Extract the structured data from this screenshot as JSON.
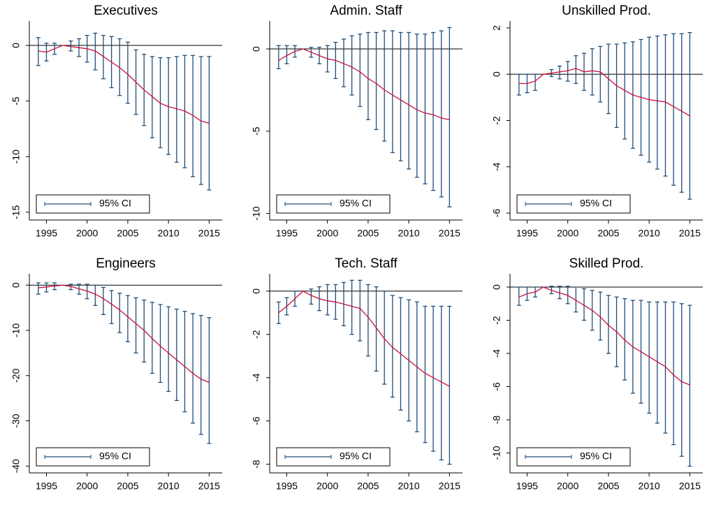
{
  "chart_data": [
    {
      "type": "errorbar",
      "title": "Executives",
      "color": "#c8103e",
      "ci_color": "#1f4e79",
      "legend": {
        "label": "95% CI",
        "position": "lower left"
      },
      "yline": 0,
      "x": [
        1994,
        1995,
        1996,
        1997,
        1998,
        1999,
        2000,
        2001,
        2002,
        2003,
        2004,
        2005,
        2006,
        2007,
        2008,
        2009,
        2010,
        2011,
        2012,
        2013,
        2014,
        2015
      ],
      "values": [
        -0.5,
        -0.6,
        -0.3,
        0,
        -0.1,
        -0.2,
        -0.3,
        -0.5,
        -1.0,
        -1.5,
        -2.0,
        -2.6,
        -3.3,
        -4.0,
        -4.6,
        -5.2,
        -5.5,
        -5.7,
        -5.9,
        -6.3,
        -6.8,
        -7.0
      ],
      "lower": [
        -1.8,
        -1.4,
        -0.8,
        null,
        -0.5,
        -1.0,
        -1.5,
        -2.2,
        -3.0,
        -3.8,
        -4.5,
        -5.2,
        -6.2,
        -7.2,
        -8.3,
        -9.2,
        -9.8,
        -10.5,
        -11.0,
        -11.8,
        -12.5,
        -13.0
      ],
      "upper": [
        0.7,
        0.2,
        0.2,
        null,
        0.4,
        0.6,
        0.9,
        1.1,
        0.9,
        0.8,
        0.6,
        0.3,
        -0.4,
        -0.8,
        -1.0,
        -1.1,
        -1.1,
        -1.0,
        -0.9,
        -0.9,
        -1.0,
        -1.0
      ],
      "xlim": [
        1992.9,
        2016.6
      ],
      "xticks": [
        1995,
        2000,
        2005,
        2010,
        2015
      ],
      "ylim": [
        -15.7,
        2.2
      ],
      "yticks": [
        0,
        -5,
        -10,
        -15
      ]
    },
    {
      "type": "errorbar",
      "title": "Admin. Staff",
      "color": "#c8103e",
      "ci_color": "#1f4e79",
      "legend": {
        "label": "95% CI",
        "position": "lower left"
      },
      "yline": 0,
      "x": [
        1994,
        1995,
        1996,
        1997,
        1998,
        1999,
        2000,
        2001,
        2002,
        2003,
        2004,
        2005,
        2006,
        2007,
        2008,
        2009,
        2010,
        2011,
        2012,
        2013,
        2014,
        2015
      ],
      "values": [
        -0.7,
        -0.4,
        -0.15,
        0,
        -0.2,
        -0.4,
        -0.6,
        -0.7,
        -0.9,
        -1.1,
        -1.4,
        -1.8,
        -2.1,
        -2.5,
        -2.8,
        -3.1,
        -3.4,
        -3.7,
        -3.9,
        -4.0,
        -4.2,
        -4.3
      ],
      "lower": [
        -1.2,
        -0.9,
        -0.5,
        null,
        -0.5,
        -0.9,
        -1.4,
        -1.8,
        -2.3,
        -2.8,
        -3.5,
        -4.3,
        -4.9,
        -5.6,
        -6.3,
        -6.8,
        -7.3,
        -7.8,
        -8.2,
        -8.6,
        -9.0,
        -9.6
      ],
      "upper": [
        0.2,
        0.2,
        0.2,
        null,
        0.1,
        0.1,
        0.2,
        0.4,
        0.6,
        0.8,
        0.9,
        1.0,
        1.0,
        1.1,
        1.1,
        1.0,
        1.0,
        0.9,
        0.9,
        1.0,
        1.1,
        1.3
      ],
      "xlim": [
        1992.9,
        2016.6
      ],
      "xticks": [
        1995,
        2000,
        2005,
        2010,
        2015
      ],
      "ylim": [
        -10.4,
        1.7
      ],
      "yticks": [
        0,
        -5,
        -10
      ]
    },
    {
      "type": "errorbar",
      "title": "Unskilled Prod.",
      "color": "#c8103e",
      "ci_color": "#1f4e79",
      "legend": {
        "label": "95% CI",
        "position": "lower left"
      },
      "yline": 0,
      "x": [
        1994,
        1995,
        1996,
        1997,
        1998,
        1999,
        2000,
        2001,
        2002,
        2003,
        2004,
        2005,
        2006,
        2007,
        2008,
        2009,
        2010,
        2011,
        2012,
        2013,
        2014,
        2015
      ],
      "values": [
        -0.4,
        -0.4,
        -0.3,
        0,
        0.05,
        0.1,
        0.15,
        0.25,
        0.1,
        0.15,
        0.1,
        -0.2,
        -0.5,
        -0.7,
        -0.9,
        -1.0,
        -1.1,
        -1.15,
        -1.2,
        -1.4,
        -1.6,
        -1.8
      ],
      "lower": [
        -0.9,
        -0.8,
        -0.7,
        null,
        -0.1,
        -0.2,
        -0.3,
        -0.4,
        -0.7,
        -0.9,
        -1.2,
        -1.7,
        -2.3,
        -2.8,
        -3.2,
        -3.5,
        -3.8,
        -4.1,
        -4.4,
        -4.8,
        -5.1,
        -5.4
      ],
      "upper": [
        0,
        0,
        0,
        null,
        0.2,
        0.35,
        0.55,
        0.8,
        0.9,
        1.1,
        1.2,
        1.3,
        1.3,
        1.35,
        1.4,
        1.5,
        1.6,
        1.65,
        1.7,
        1.75,
        1.75,
        1.8
      ],
      "xlim": [
        1992.9,
        2016.6
      ],
      "xticks": [
        1995,
        2000,
        2005,
        2010,
        2015
      ],
      "ylim": [
        -6.3,
        2.3
      ],
      "yticks": [
        2,
        0,
        -2,
        -4,
        -6
      ]
    },
    {
      "type": "errorbar",
      "title": "Engineers",
      "color": "#c8103e",
      "ci_color": "#1f4e79",
      "legend": {
        "label": "95% CI",
        "position": "lower left"
      },
      "yline": 0,
      "x": [
        1994,
        1995,
        1996,
        1997,
        1998,
        1999,
        2000,
        2001,
        2002,
        2003,
        2004,
        2005,
        2006,
        2007,
        2008,
        2009,
        2010,
        2011,
        2012,
        2013,
        2014,
        2015
      ],
      "values": [
        -0.6,
        -0.4,
        -0.2,
        0,
        -0.3,
        -0.8,
        -1.3,
        -2,
        -3,
        -4.2,
        -5.5,
        -7,
        -8.5,
        -10,
        -11.8,
        -13.5,
        -15,
        -16.5,
        -18,
        -19.5,
        -20.8,
        -21.5
      ],
      "lower": [
        -2,
        -1.5,
        -1,
        null,
        -1,
        -2,
        -3,
        -4.5,
        -6.5,
        -8.5,
        -10.5,
        -12.5,
        -15,
        -17,
        -19.5,
        -21.5,
        -23.5,
        -25.5,
        -28,
        -30.5,
        -33,
        -35
      ],
      "upper": [
        0.5,
        0.5,
        0.5,
        null,
        0.2,
        0.2,
        0.2,
        0,
        -0.5,
        -1.2,
        -1.8,
        -2.3,
        -2.8,
        -3.3,
        -3.8,
        -4.3,
        -4.8,
        -5.3,
        -5.8,
        -6.3,
        -6.7,
        -7.2
      ],
      "xlim": [
        1992.9,
        2016.6
      ],
      "xticks": [
        1995,
        2000,
        2005,
        2010,
        2015
      ],
      "ylim": [
        -41.5,
        2.5
      ],
      "yticks": [
        0,
        -10,
        -20,
        -30,
        -40
      ]
    },
    {
      "type": "errorbar",
      "title": "Tech. Staff",
      "color": "#c8103e",
      "ci_color": "#1f4e79",
      "legend": {
        "label": "95% CI",
        "position": "lower left"
      },
      "yline": 0,
      "x": [
        1994,
        1995,
        1996,
        1997,
        1998,
        1999,
        2000,
        2001,
        2002,
        2003,
        2004,
        2005,
        2006,
        2007,
        2008,
        2009,
        2010,
        2011,
        2012,
        2013,
        2014,
        2015
      ],
      "values": [
        -1.0,
        -0.7,
        -0.35,
        0,
        -0.2,
        -0.35,
        -0.45,
        -0.5,
        -0.6,
        -0.7,
        -0.8,
        -1.2,
        -1.7,
        -2.2,
        -2.6,
        -2.9,
        -3.2,
        -3.5,
        -3.8,
        -4.0,
        -4.2,
        -4.4
      ],
      "lower": [
        -1.5,
        -1.1,
        -0.7,
        null,
        -0.6,
        -0.9,
        -1.1,
        -1.3,
        -1.6,
        -2.0,
        -2.3,
        -3.0,
        -3.7,
        -4.3,
        -4.9,
        -5.5,
        -6.0,
        -6.5,
        -7.0,
        -7.4,
        -7.8,
        -8.0
      ],
      "upper": [
        -0.5,
        -0.3,
        0,
        null,
        0.1,
        0.2,
        0.3,
        0.3,
        0.4,
        0.5,
        0.5,
        0.3,
        0.2,
        0.0,
        -0.2,
        -0.3,
        -0.4,
        -0.5,
        -0.7,
        -0.7,
        -0.7,
        -0.7
      ],
      "xlim": [
        1992.9,
        2016.6
      ],
      "xticks": [
        1995,
        2000,
        2005,
        2010,
        2015
      ],
      "ylim": [
        -8.4,
        0.8
      ],
      "yticks": [
        0,
        -2,
        -4,
        -6,
        -8
      ]
    },
    {
      "type": "errorbar",
      "title": "Skilled Prod.",
      "color": "#c8103e",
      "ci_color": "#1f4e79",
      "legend": {
        "label": "95% CI",
        "position": "lower left"
      },
      "yline": 0,
      "x": [
        1994,
        1995,
        1996,
        1997,
        1998,
        1999,
        2000,
        2001,
        2002,
        2003,
        2004,
        2005,
        2006,
        2007,
        2008,
        2009,
        2010,
        2011,
        2012,
        2013,
        2014,
        2015
      ],
      "values": [
        -0.6,
        -0.4,
        -0.3,
        0,
        -0.2,
        -0.35,
        -0.5,
        -0.8,
        -1.1,
        -1.4,
        -1.8,
        -2.3,
        -2.7,
        -3.2,
        -3.6,
        -3.9,
        -4.2,
        -4.5,
        -4.8,
        -5.3,
        -5.7,
        -5.9
      ],
      "lower": [
        -1.1,
        -0.8,
        -0.6,
        null,
        -0.4,
        -0.7,
        -1.0,
        -1.5,
        -2.0,
        -2.6,
        -3.2,
        -4.0,
        -4.8,
        -5.6,
        -6.4,
        -7.0,
        -7.6,
        -8.2,
        -8.8,
        -9.5,
        -10.2,
        -10.8
      ],
      "upper": [
        0,
        0,
        0,
        null,
        0.05,
        0.05,
        0.05,
        0,
        -0.1,
        -0.2,
        -0.3,
        -0.5,
        -0.6,
        -0.7,
        -0.8,
        -0.8,
        -0.9,
        -0.9,
        -0.9,
        -0.9,
        -1.0,
        -1.1
      ],
      "xlim": [
        1992.9,
        2016.6
      ],
      "xticks": [
        1995,
        2000,
        2005,
        2010,
        2015
      ],
      "ylim": [
        -11.2,
        0.8
      ],
      "yticks": [
        0,
        -2,
        -4,
        -6,
        -8,
        -10
      ]
    }
  ]
}
